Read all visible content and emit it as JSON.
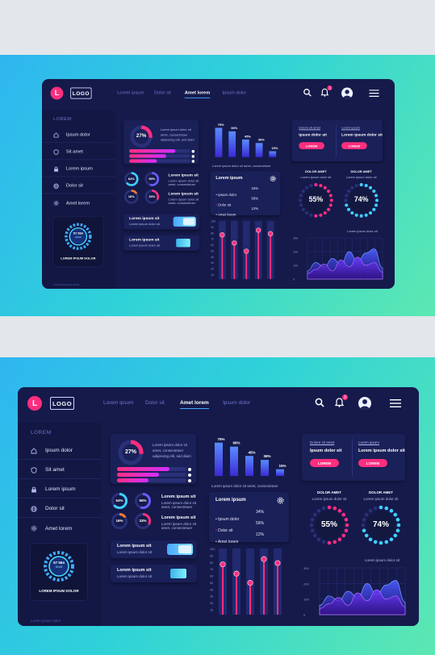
{
  "header": {
    "logo_letter": "L",
    "logo_text": "LOGO",
    "nav": [
      "Lorem ipsum",
      "Dolor sit",
      "Amet lorem",
      "Ipsum dolor"
    ],
    "active_nav": "Amet lorem",
    "notification_count": "3"
  },
  "sidebar": {
    "title": "LOREM",
    "items": [
      {
        "label": "Ipsum dolor",
        "icon": "home-icon"
      },
      {
        "label": "Sit amet",
        "icon": "shield-icon"
      },
      {
        "label": "Lorem ipsum",
        "icon": "lock-icon"
      },
      {
        "label": "Dolor sit",
        "icon": "globe-icon"
      },
      {
        "label": "Amet lorem",
        "icon": "gear-icon"
      }
    ],
    "widget_value": "57 564",
    "widget_sub": "00:00",
    "widget_caption": "LOREM IPSUM DOLOR",
    "footer": "Lorem ipsum dolor"
  },
  "progress_card": {
    "percent_label": "27%",
    "percent": 27,
    "text": "Lorem ipsum dolor sit amet, consectetuer adipiscing elit, sed diam",
    "bars": [
      0.75,
      0.6,
      0.45
    ]
  },
  "rings": [
    {
      "label": "64%",
      "value": 64,
      "color": "#3fd0ff"
    },
    {
      "label": "55%",
      "value": 55,
      "color": "#6a5cff"
    },
    {
      "label": "16%",
      "value": 16,
      "color": "#ff7a2e"
    },
    {
      "label": "33%",
      "value": 33,
      "color": "#ff2e7e"
    }
  ],
  "ring_texts": [
    {
      "title": "Lorem ipsum sit",
      "body": "Lorem ipsum dolor sit amet, consectetuer"
    },
    {
      "title": "Lorem ipsum sit",
      "body": "Lorem ipsum dolor sit amet, consectetuer"
    }
  ],
  "toggles": [
    {
      "title": "Lorem ipsum sit",
      "body": "Lorem ipsum dolor sit"
    },
    {
      "title": "Lorem ipsum sit",
      "body": "Lorem ipsum dolor sit"
    }
  ],
  "bar_chart": {
    "type": "bar",
    "labels": [
      "75%",
      "66%",
      "45%",
      "36%",
      "15%"
    ],
    "values": [
      75,
      66,
      45,
      36,
      15
    ],
    "caption": "Lorem ipsum dolor sit amet, consectetuer"
  },
  "list_card": {
    "title": "Lorem ipsum",
    "items": [
      {
        "label": "Ipsum dolor",
        "value": "34%"
      },
      {
        "label": "Dolor sit",
        "value": "56%"
      },
      {
        "label": "Amet lorem",
        "value": "12%"
      }
    ]
  },
  "lollipop_chart": {
    "type": "bar",
    "y_ticks": [
      "100",
      "90",
      "80",
      "70",
      "60",
      "50",
      "40",
      "30",
      "20",
      "10"
    ],
    "values": [
      76,
      62,
      48,
      84,
      78
    ]
  },
  "buttons_card": {
    "cols": [
      {
        "title": "Dolore sit amet",
        "text": "Ipsum dolor sit",
        "button": "LOREM"
      },
      {
        "title": "Lorem ipsum",
        "text": "Lorem ipsum dolor sit",
        "button": "LOREM"
      }
    ]
  },
  "gauges": [
    {
      "title": "DOLOR AMET",
      "sub": "Lorem ipsum dolor sit",
      "label": "55%",
      "value": 55,
      "color": "#ff2e7e"
    },
    {
      "title": "DOLOR AMET",
      "sub": "Lorem ipsum dolor sit",
      "label": "74%",
      "value": 74,
      "color": "#3fd0ff"
    }
  ],
  "area_chart": {
    "type": "area",
    "caption": "Lorem ipsum dolor sit",
    "y_ticks": [
      "300",
      "200",
      "100",
      "0"
    ],
    "series": [
      {
        "values": [
          60,
          120,
          90,
          150,
          110,
          200,
          130,
          190,
          220,
          80
        ]
      },
      {
        "values": [
          40,
          70,
          110,
          60,
          140,
          90,
          160,
          100,
          120,
          50
        ]
      }
    ]
  }
}
